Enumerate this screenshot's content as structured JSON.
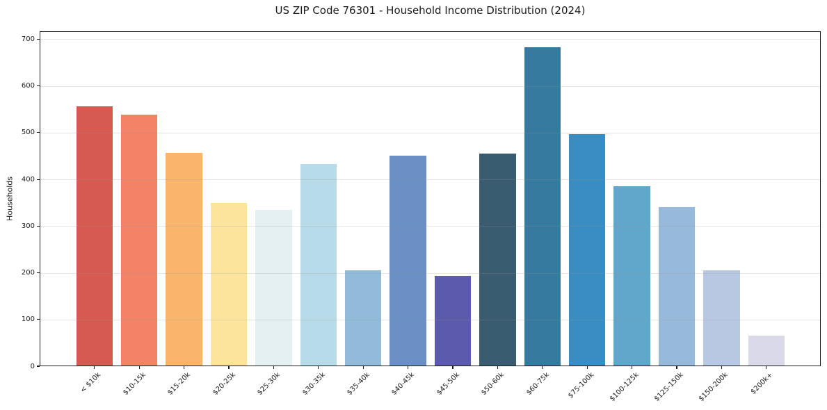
{
  "chart_data": {
    "type": "bar",
    "title": "US ZIP Code 76301 - Household Income Distribution (2024)",
    "xlabel": "",
    "ylabel": "Households",
    "categories": [
      "< $10k",
      "$10-15k",
      "$15-20k",
      "$20-25k",
      "$25-30k",
      "$30-35k",
      "$35-40k",
      "$40-45k",
      "$45-50k",
      "$50-60k",
      "$60-75k",
      "$75-100k",
      "$100-125k",
      "$125-150k",
      "$150-200k",
      "$200k+"
    ],
    "values": [
      557,
      539,
      456,
      349,
      335,
      433,
      205,
      451,
      193,
      455,
      683,
      497,
      386,
      340,
      206,
      66
    ],
    "bar_colors": [
      "#d65952",
      "#f28367",
      "#fab56c",
      "#fce49c",
      "#e4f0f2",
      "#b8dbe9",
      "#92bad9",
      "#6b90c5",
      "#5b5aab",
      "#3a5c70",
      "#377a9f",
      "#3a8dc3",
      "#61a7cc",
      "#97badb",
      "#b9c8e2",
      "#d9d9e9"
    ],
    "yticks": [
      0,
      100,
      200,
      300,
      400,
      500,
      600,
      700
    ],
    "ylim": [
      0,
      717
    ],
    "xtick_rotation_deg": 45,
    "grid": "horizontal-y",
    "legend": false,
    "background_color": "#ffffff",
    "axis_color": "#1a1a1a"
  }
}
